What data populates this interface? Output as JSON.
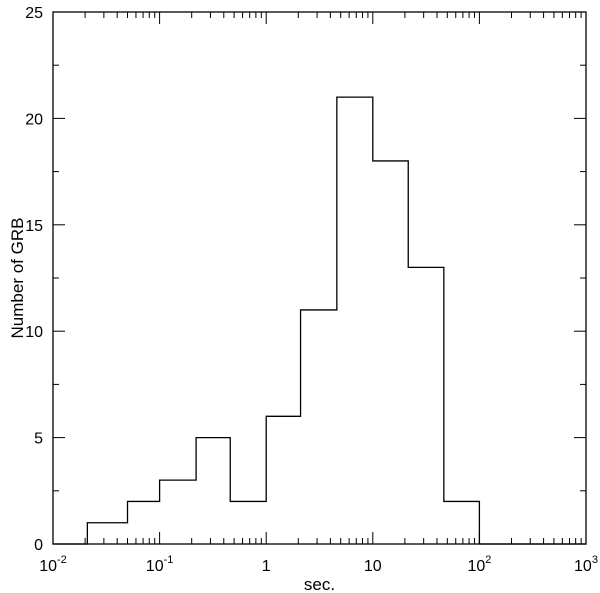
{
  "chart_data": {
    "type": "bar",
    "style": "step-histogram",
    "title": "",
    "xlabel": "sec.",
    "ylabel": "Number of GRB",
    "xscale": "log",
    "xlim": [
      0.01,
      1000
    ],
    "ylim": [
      0,
      25
    ],
    "grid": false,
    "legend": "none",
    "line_color": "#000000",
    "bin_edges": [
      0.01,
      0.021,
      0.05,
      0.1,
      0.22,
      0.46,
      1,
      2.1,
      4.6,
      10,
      21.5,
      46.4,
      100,
      1000
    ],
    "values": [
      0,
      1,
      2,
      3,
      5,
      2,
      6,
      11,
      21,
      18,
      13,
      2,
      0
    ],
    "x_ticks": [
      {
        "value": 0.01,
        "base": "10",
        "exp": "-2"
      },
      {
        "value": 0.1,
        "base": "10",
        "exp": "-1"
      },
      {
        "value": 1,
        "base": "1",
        "exp": ""
      },
      {
        "value": 10,
        "base": "10",
        "exp": ""
      },
      {
        "value": 100,
        "base": "10",
        "exp": "2"
      },
      {
        "value": 1000,
        "base": "10",
        "exp": "3"
      }
    ],
    "y_ticks": [
      0,
      5,
      10,
      15,
      20,
      25
    ]
  }
}
